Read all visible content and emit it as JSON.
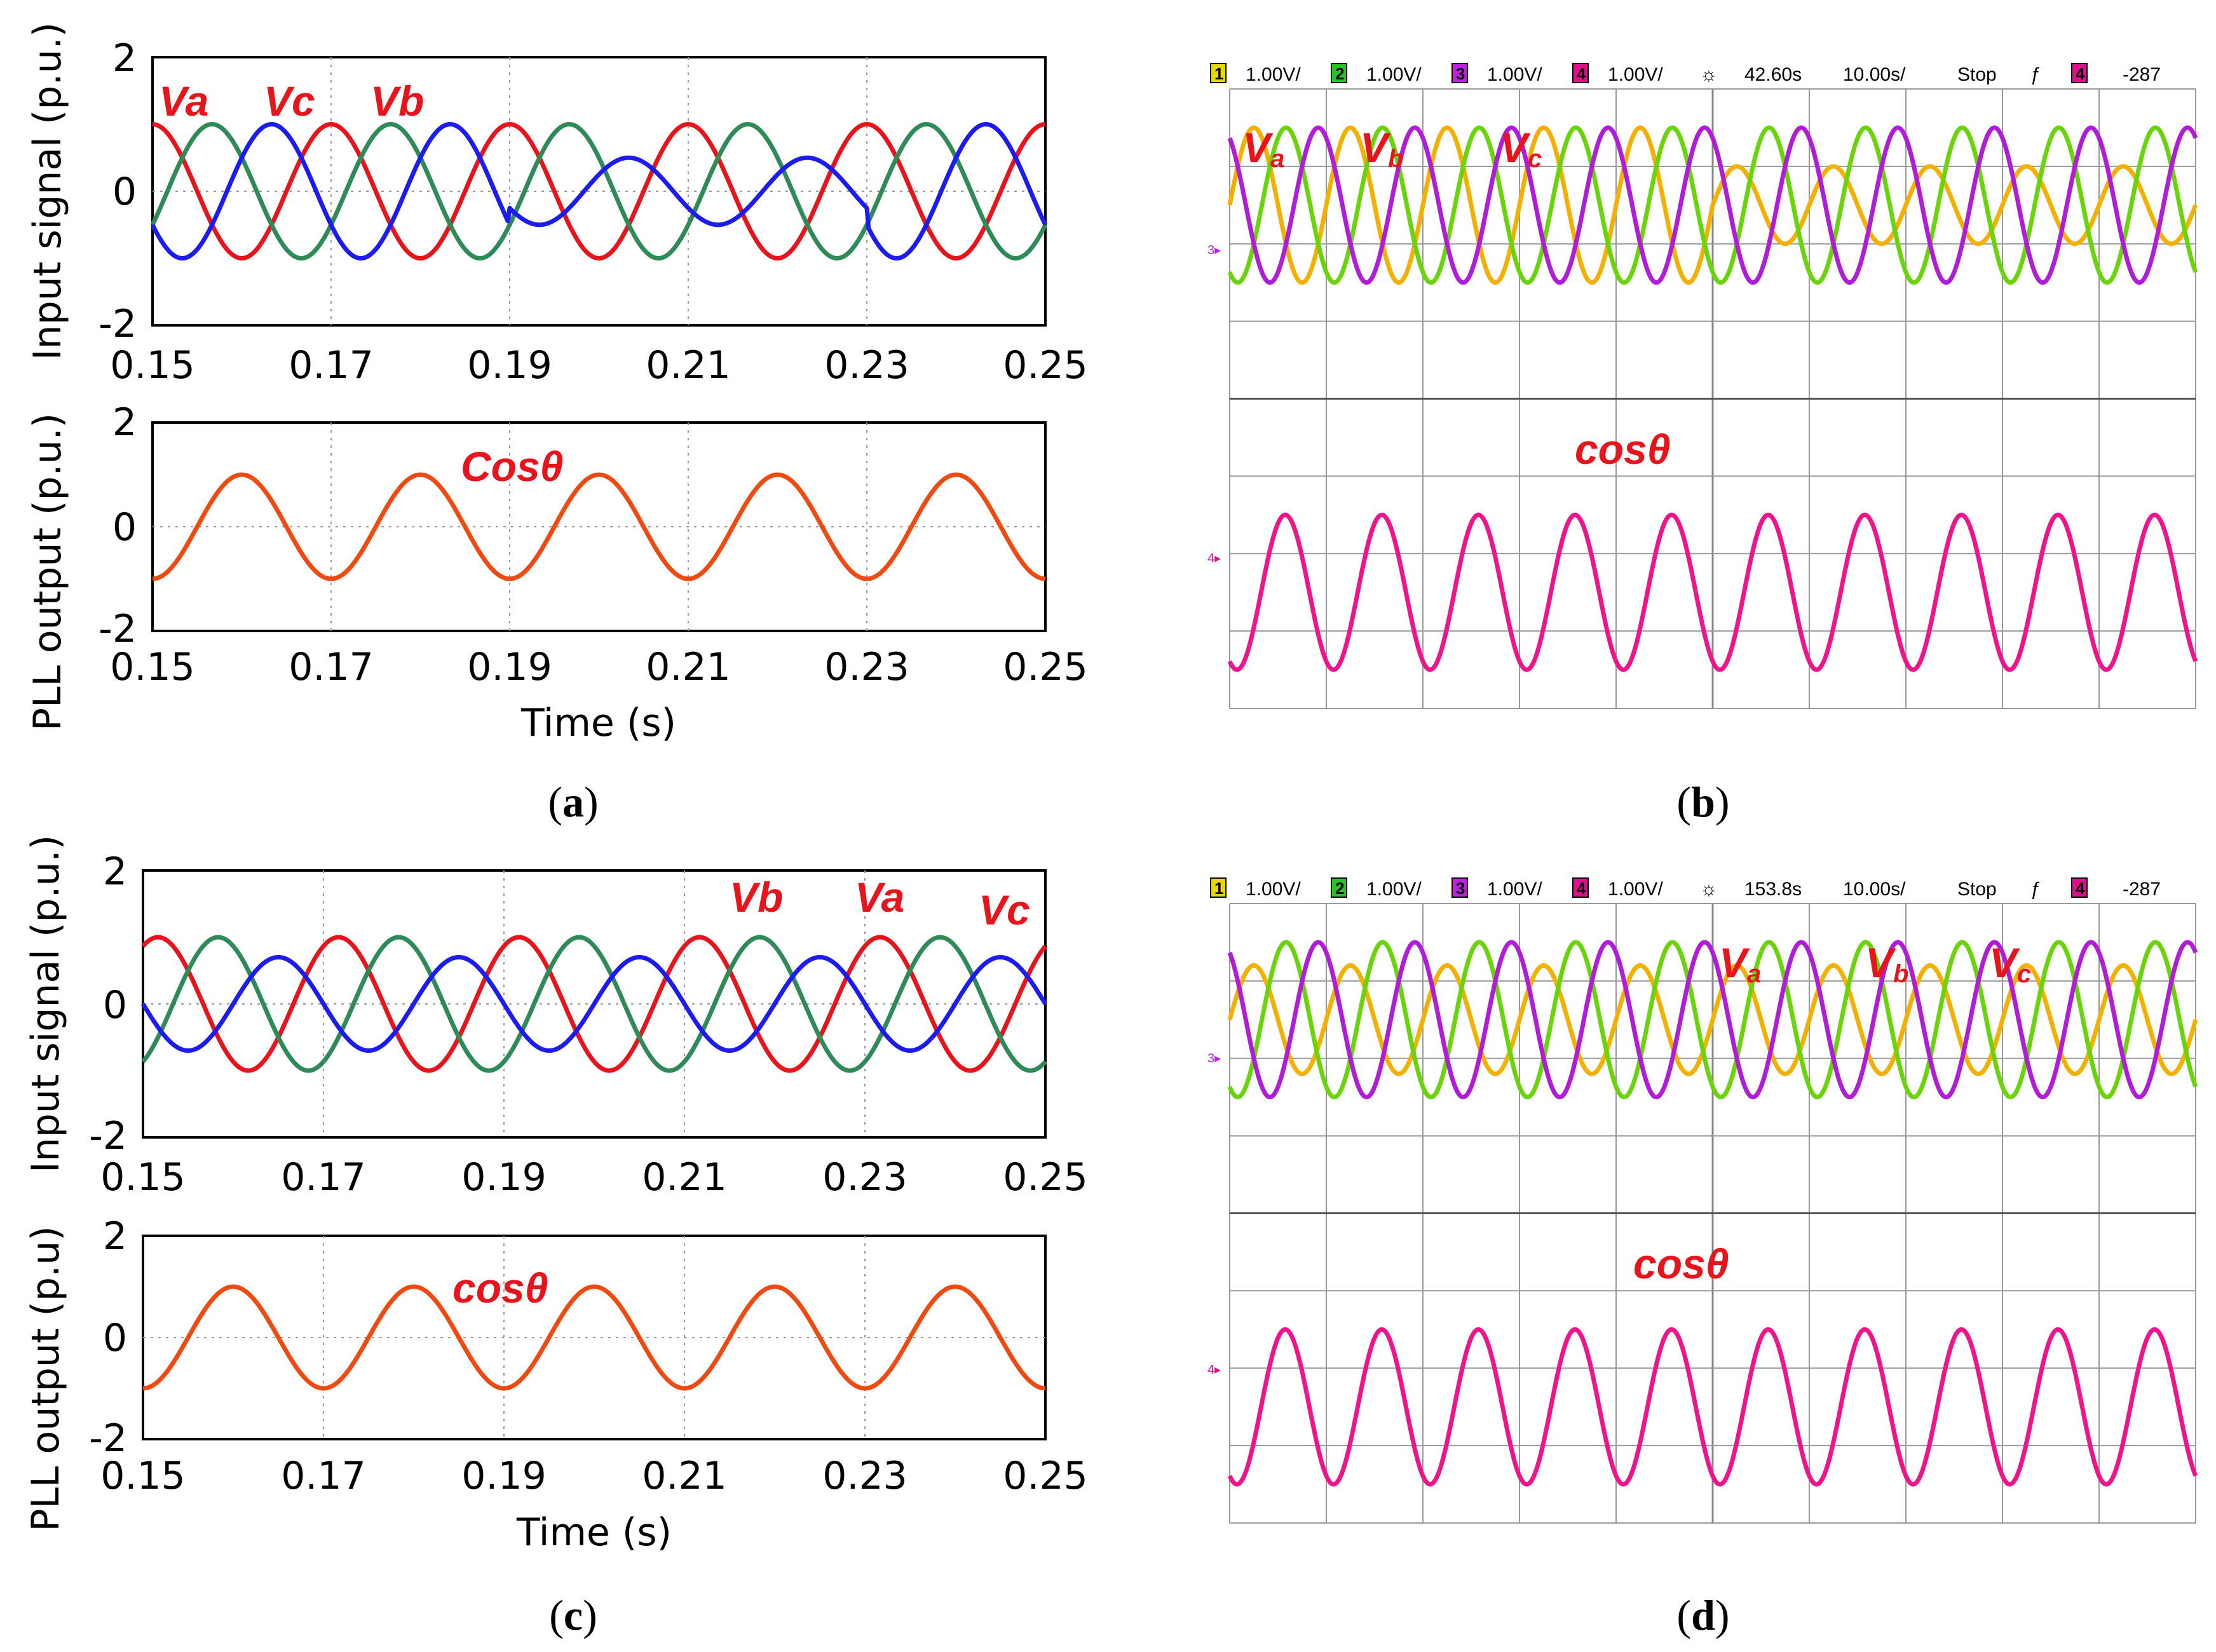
{
  "colors": {
    "sim_va": "#e8141c",
    "sim_vb": "#2e8b57",
    "sim_vc": "#1c1cf0",
    "sim_pll": "#f04a10",
    "osc_va": "#f4b000",
    "osc_vb": "#6ad40a",
    "osc_vc": "#b01cd8",
    "osc_pll": "#f0148c",
    "osc_ch1": "#e6d800",
    "osc_ch2": "#23c423",
    "osc_ch3": "#c020e0",
    "osc_ch4": "#e0108c",
    "label_red": "#e8141c",
    "grid": "#999999",
    "osc_grid": "#9a9a9a"
  },
  "panels": {
    "a": {
      "caption_open": "(",
      "caption_letter": "a",
      "caption_close": ")",
      "top_ylabel": "Input signal (p.u.)",
      "bottom_ylabel": "PLL output (p.u.)",
      "xlabel": "Time (s)",
      "xticks": [
        "0.15",
        "0.17",
        "0.19",
        "0.21",
        "0.23",
        "0.25"
      ],
      "yticks": [
        "2",
        "0",
        "-2"
      ],
      "signal_labels": [
        "Va",
        "Vc",
        "Vb"
      ],
      "pll_label": "Cosθ"
    },
    "b": {
      "caption_open": "(",
      "caption_letter": "b",
      "caption_close": ")",
      "header": {
        "ch1": "1.00V/",
        "ch2": "1.00V/",
        "ch3": "1.00V/",
        "ch4": "1.00V/",
        "time_pos": "42.60s",
        "time_div": "10.00s/",
        "mode": "Stop",
        "trig_level": "-287"
      },
      "signal_labels": [
        {
          "main": "V",
          "sub": "a"
        },
        {
          "main": "V",
          "sub": "b"
        },
        {
          "main": "V",
          "sub": "c"
        }
      ],
      "pll_label": "cosθ"
    },
    "c": {
      "caption_open": "(",
      "caption_letter": "c",
      "caption_close": ")",
      "top_ylabel": "Input signal (p.u.)",
      "bottom_ylabel": "PLL output (p.u)",
      "xlabel": "Time (s)",
      "xticks": [
        "0.15",
        "0.17",
        "0.19",
        "0.21",
        "0.23",
        "0.25"
      ],
      "yticks": [
        "2",
        "0",
        "-2"
      ],
      "signal_labels": [
        "Vb",
        "Va",
        "Vc"
      ],
      "pll_label": "cosθ"
    },
    "d": {
      "caption_open": "(",
      "caption_letter": "d",
      "caption_close": ")",
      "header": {
        "ch1": "1.00V/",
        "ch2": "1.00V/",
        "ch3": "1.00V/",
        "ch4": "1.00V/",
        "time_pos": "153.8s",
        "time_div": "10.00s/",
        "mode": "Stop",
        "trig_level": "-287"
      },
      "signal_labels": [
        {
          "main": "V",
          "sub": "a"
        },
        {
          "main": "V",
          "sub": "b"
        },
        {
          "main": "V",
          "sub": "c"
        }
      ],
      "pll_label": "cosθ"
    }
  },
  "chart_data": [
    {
      "panel": "a",
      "type": "line",
      "xlim": [
        0.15,
        0.25
      ],
      "ylim": [
        -2,
        2
      ],
      "series": [
        {
          "name": "Va",
          "amplitude_pu": [
            1.0,
            1.0
          ],
          "phase_deg": 0
        },
        {
          "name": "Vb",
          "amplitude_pu": [
            1.0,
            1.0
          ],
          "phase_deg": -120
        },
        {
          "name": "Vc",
          "amplitude_pu": [
            1.0,
            0.5
          ],
          "phase_deg": 120
        }
      ],
      "frequency_hz": 50,
      "unbalance_interval_s": [
        0.19,
        0.23
      ]
    },
    {
      "panel": "a",
      "type": "line",
      "xlim": [
        0.15,
        0.25
      ],
      "ylim": [
        -2,
        2
      ],
      "series": [
        {
          "name": "Cosθ",
          "amplitude_pu": 1.0,
          "phase_deg": 180
        }
      ],
      "frequency_hz": 50
    },
    {
      "panel": "b",
      "type": "line",
      "series": [
        {
          "name": "Va",
          "amplitude_div": [
            1.0,
            0.5
          ]
        },
        {
          "name": "Vb",
          "amplitude_div": [
            1.0,
            1.0
          ]
        },
        {
          "name": "Vc",
          "amplitude_div": [
            1.0,
            1.0
          ]
        }
      ],
      "cycles_visible": 10
    },
    {
      "panel": "b",
      "type": "line",
      "series": [
        {
          "name": "cosθ",
          "amplitude_div": 1.0
        }
      ],
      "cycles_visible": 10
    },
    {
      "panel": "c",
      "type": "line",
      "xlim": [
        0.15,
        0.25
      ],
      "ylim": [
        -2,
        2
      ],
      "series": [
        {
          "name": "Va",
          "amplitude_pu": 1.0,
          "phase_deg": -30
        },
        {
          "name": "Vb",
          "amplitude_pu": 1.0,
          "phase_deg": -150
        },
        {
          "name": "Vc",
          "amplitude_pu": 0.7,
          "phase_deg": 90
        }
      ],
      "frequency_hz": 50
    },
    {
      "panel": "c",
      "type": "line",
      "xlim": [
        0.15,
        0.25
      ],
      "ylim": [
        -2,
        2
      ],
      "series": [
        {
          "name": "cosθ",
          "amplitude_pu": 1.0,
          "phase_deg": 180
        }
      ],
      "frequency_hz": 50
    },
    {
      "panel": "d",
      "type": "line",
      "series": [
        {
          "name": "Va",
          "amplitude_div": 0.7
        },
        {
          "name": "Vb",
          "amplitude_div": 1.0
        },
        {
          "name": "Vc",
          "amplitude_div": 1.0
        }
      ],
      "cycles_visible": 10
    },
    {
      "panel": "d",
      "type": "line",
      "series": [
        {
          "name": "cosθ",
          "amplitude_div": 1.0
        }
      ],
      "cycles_visible": 10
    }
  ]
}
